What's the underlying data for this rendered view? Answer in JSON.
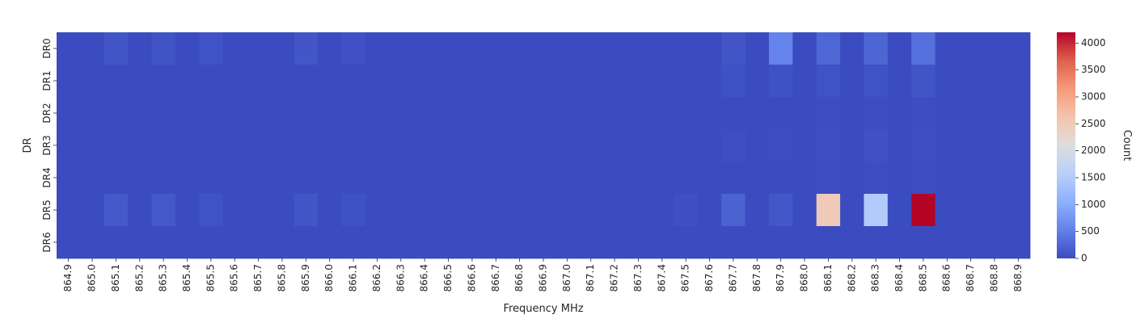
{
  "chart_data": {
    "type": "heatmap",
    "title": "",
    "xlabel": "Frequency MHz",
    "ylabel": "DR",
    "colorbar_label": "Count",
    "colormap": "coolwarm",
    "vmin": 0,
    "vmax": 4200,
    "colorbar_ticks": [
      "0",
      "500",
      "1000",
      "1500",
      "2000",
      "2500",
      "3000",
      "3500",
      "4000"
    ],
    "rows": [
      "DR0",
      "DR1",
      "DR2",
      "DR3",
      "DR4",
      "DR5",
      "DR6"
    ],
    "columns": [
      "864.9",
      "865.0",
      "865.1",
      "865.2",
      "865.3",
      "865.4",
      "865.5",
      "865.6",
      "865.7",
      "865.8",
      "865.9",
      "866.0",
      "866.1",
      "866.2",
      "866.3",
      "866.4",
      "866.5",
      "866.6",
      "866.7",
      "866.8",
      "866.9",
      "867.0",
      "867.1",
      "867.2",
      "867.3",
      "867.4",
      "867.5",
      "867.6",
      "867.7",
      "867.8",
      "867.9",
      "868.0",
      "868.1",
      "868.2",
      "868.3",
      "868.4",
      "868.5",
      "868.6",
      "868.7",
      "868.8",
      "868.9"
    ],
    "values": [
      [
        0,
        0,
        90,
        0,
        80,
        0,
        70,
        0,
        0,
        0,
        100,
        0,
        50,
        0,
        0,
        0,
        0,
        0,
        0,
        0,
        0,
        0,
        0,
        0,
        0,
        0,
        0,
        0,
        100,
        0,
        550,
        0,
        260,
        0,
        250,
        0,
        350,
        0,
        0,
        0,
        0
      ],
      [
        0,
        0,
        0,
        0,
        0,
        0,
        0,
        0,
        0,
        0,
        0,
        0,
        0,
        0,
        0,
        0,
        0,
        0,
        0,
        0,
        0,
        0,
        0,
        0,
        0,
        0,
        0,
        0,
        60,
        0,
        60,
        0,
        70,
        0,
        70,
        0,
        90,
        0,
        0,
        0,
        0
      ],
      [
        0,
        0,
        0,
        0,
        0,
        0,
        0,
        0,
        0,
        0,
        0,
        0,
        0,
        0,
        0,
        0,
        0,
        0,
        0,
        0,
        0,
        0,
        0,
        0,
        0,
        0,
        0,
        0,
        0,
        0,
        0,
        0,
        15,
        0,
        15,
        0,
        15,
        0,
        0,
        0,
        0
      ],
      [
        0,
        0,
        0,
        0,
        0,
        0,
        0,
        0,
        0,
        0,
        0,
        0,
        0,
        0,
        0,
        0,
        0,
        0,
        0,
        0,
        0,
        0,
        0,
        0,
        0,
        0,
        0,
        0,
        30,
        0,
        15,
        0,
        30,
        0,
        50,
        0,
        40,
        0,
        0,
        0,
        0
      ],
      [
        0,
        0,
        0,
        0,
        0,
        0,
        0,
        0,
        0,
        0,
        0,
        0,
        0,
        0,
        0,
        0,
        0,
        0,
        0,
        0,
        0,
        0,
        0,
        0,
        0,
        0,
        0,
        0,
        0,
        0,
        0,
        0,
        15,
        0,
        15,
        0,
        20,
        0,
        0,
        0,
        0
      ],
      [
        0,
        0,
        130,
        0,
        120,
        0,
        70,
        0,
        0,
        0,
        100,
        0,
        60,
        0,
        0,
        0,
        0,
        0,
        0,
        0,
        0,
        0,
        0,
        0,
        0,
        0,
        40,
        0,
        210,
        0,
        110,
        0,
        2500,
        0,
        1500,
        0,
        4200,
        0,
        0,
        0,
        0
      ],
      [
        0,
        0,
        0,
        0,
        0,
        0,
        0,
        0,
        0,
        0,
        0,
        0,
        0,
        0,
        0,
        0,
        0,
        0,
        0,
        0,
        0,
        0,
        0,
        0,
        0,
        0,
        0,
        0,
        0,
        0,
        0,
        0,
        0,
        0,
        0,
        0,
        0,
        0,
        0,
        0,
        0
      ]
    ]
  }
}
